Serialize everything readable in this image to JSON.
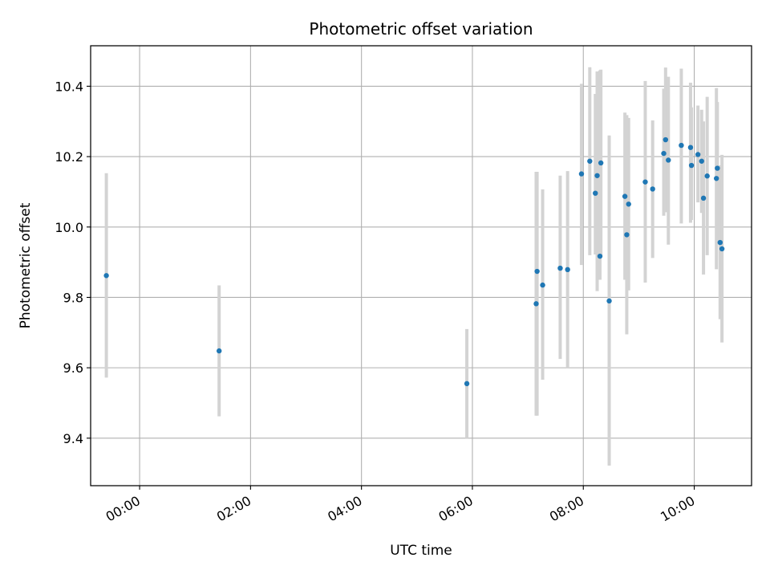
{
  "chart_data": {
    "type": "scatter",
    "title": "Photometric offset variation",
    "xlabel": "UTC time",
    "ylabel": "Photometric offset",
    "xlim": [
      "2000-01-01T23:07",
      "2000-01-02T11:02"
    ],
    "ylim": [
      9.265,
      10.515
    ],
    "x_ticks": [
      {
        "t": "2000-01-02T00:00",
        "label": "00:00"
      },
      {
        "t": "2000-01-02T02:00",
        "label": "02:00"
      },
      {
        "t": "2000-01-02T04:00",
        "label": "04:00"
      },
      {
        "t": "2000-01-02T06:00",
        "label": "06:00"
      },
      {
        "t": "2000-01-02T08:00",
        "label": "08:00"
      },
      {
        "t": "2000-01-02T10:00",
        "label": "10:00"
      }
    ],
    "y_ticks": [
      {
        "v": 9.4,
        "label": "9.4"
      },
      {
        "v": 9.6,
        "label": "9.6"
      },
      {
        "v": 9.8,
        "label": "9.8"
      },
      {
        "v": 10.0,
        "label": "10.0"
      },
      {
        "v": 10.2,
        "label": "10.2"
      },
      {
        "v": 10.4,
        "label": "10.4"
      }
    ],
    "grid": true,
    "marker_color": "#1f77b4",
    "errorbar_color": "#d3d3d3",
    "points": [
      {
        "t": "2000-01-01T23:24",
        "y": 9.862,
        "ymin": 9.572,
        "ymax": 10.153
      },
      {
        "t": "2000-01-02T01:26",
        "y": 9.648,
        "ymin": 9.462,
        "ymax": 9.834
      },
      {
        "t": "2000-01-02T05:54",
        "y": 9.555,
        "ymin": 9.4,
        "ymax": 9.71
      },
      {
        "t": "2000-01-02T07:09",
        "y": 9.782,
        "ymin": 9.464,
        "ymax": 10.157
      },
      {
        "t": "2000-01-02T07:10",
        "y": 9.874,
        "ymin": 9.464,
        "ymax": 10.157
      },
      {
        "t": "2000-01-02T07:16",
        "y": 9.835,
        "ymin": 9.566,
        "ymax": 10.107
      },
      {
        "t": "2000-01-02T07:35",
        "y": 9.883,
        "ymin": 9.625,
        "ymax": 10.146
      },
      {
        "t": "2000-01-02T07:43",
        "y": 9.879,
        "ymin": 9.6,
        "ymax": 10.159
      },
      {
        "t": "2000-01-02T07:58",
        "y": 10.151,
        "ymin": 9.892,
        "ymax": 10.407
      },
      {
        "t": "2000-01-02T08:07",
        "y": 10.187,
        "ymin": 9.92,
        "ymax": 10.454
      },
      {
        "t": "2000-01-02T08:13",
        "y": 10.096,
        "ymin": 9.922,
        "ymax": 10.378
      },
      {
        "t": "2000-01-02T08:15",
        "y": 10.146,
        "ymin": 9.818,
        "ymax": 10.442
      },
      {
        "t": "2000-01-02T08:18",
        "y": 9.917,
        "ymin": 9.85,
        "ymax": 10.445
      },
      {
        "t": "2000-01-02T08:19",
        "y": 10.182,
        "ymin": 9.92,
        "ymax": 10.447
      },
      {
        "t": "2000-01-02T08:28",
        "y": 9.79,
        "ymin": 9.322,
        "ymax": 10.26
      },
      {
        "t": "2000-01-02T08:45",
        "y": 10.087,
        "ymin": 9.85,
        "ymax": 10.325
      },
      {
        "t": "2000-01-02T08:47",
        "y": 9.978,
        "ymin": 9.695,
        "ymax": 10.318
      },
      {
        "t": "2000-01-02T08:49",
        "y": 10.065,
        "ymin": 9.82,
        "ymax": 10.31
      },
      {
        "t": "2000-01-02T09:07",
        "y": 10.128,
        "ymin": 9.842,
        "ymax": 10.415
      },
      {
        "t": "2000-01-02T09:15",
        "y": 10.108,
        "ymin": 9.912,
        "ymax": 10.303
      },
      {
        "t": "2000-01-02T09:27",
        "y": 10.209,
        "ymin": 10.032,
        "ymax": 10.393
      },
      {
        "t": "2000-01-02T09:29",
        "y": 10.248,
        "ymin": 10.042,
        "ymax": 10.453
      },
      {
        "t": "2000-01-02T09:32",
        "y": 10.19,
        "ymin": 9.95,
        "ymax": 10.427
      },
      {
        "t": "2000-01-02T09:46",
        "y": 10.232,
        "ymin": 10.01,
        "ymax": 10.45
      },
      {
        "t": "2000-01-02T09:56",
        "y": 10.226,
        "ymin": 10.012,
        "ymax": 10.41
      },
      {
        "t": "2000-01-02T09:57",
        "y": 10.175,
        "ymin": 10.02,
        "ymax": 10.34
      },
      {
        "t": "2000-01-02T10:04",
        "y": 10.206,
        "ymin": 10.07,
        "ymax": 10.345
      },
      {
        "t": "2000-01-02T10:08",
        "y": 10.187,
        "ymin": 10.04,
        "ymax": 10.333
      },
      {
        "t": "2000-01-02T10:10",
        "y": 10.082,
        "ymin": 9.865,
        "ymax": 10.3
      },
      {
        "t": "2000-01-02T10:14",
        "y": 10.145,
        "ymin": 9.92,
        "ymax": 10.37
      },
      {
        "t": "2000-01-02T10:24",
        "y": 10.138,
        "ymin": 9.88,
        "ymax": 10.395
      },
      {
        "t": "2000-01-02T10:25",
        "y": 10.167,
        "ymin": 9.96,
        "ymax": 10.355
      },
      {
        "t": "2000-01-02T10:28",
        "y": 9.956,
        "ymin": 9.738,
        "ymax": 10.175
      },
      {
        "t": "2000-01-02T10:30",
        "y": 9.938,
        "ymin": 9.672,
        "ymax": 10.205
      }
    ]
  }
}
